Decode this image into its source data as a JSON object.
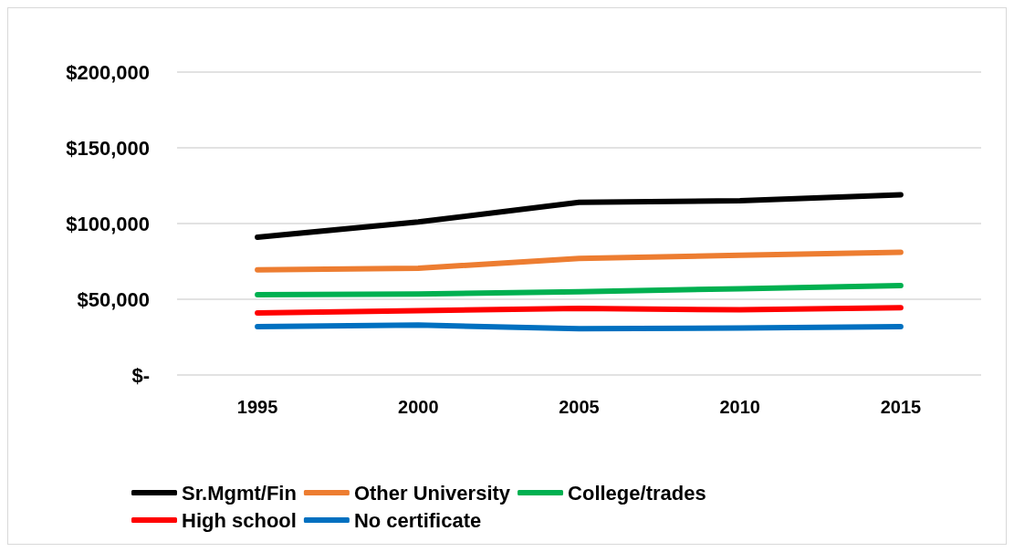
{
  "chart_data": {
    "type": "line",
    "categories": [
      "1995",
      "2000",
      "2005",
      "2010",
      "2015"
    ],
    "series": [
      {
        "name": "Sr.Mgmt/Fin",
        "color": "#000000",
        "values": [
          91000,
          101000,
          114000,
          115000,
          119000
        ]
      },
      {
        "name": "Other University",
        "color": "#ed7d31",
        "values": [
          69500,
          70500,
          77000,
          79000,
          81000
        ]
      },
      {
        "name": "College/trades",
        "color": "#00b050",
        "values": [
          53000,
          53500,
          55000,
          57000,
          59000
        ]
      },
      {
        "name": "High school",
        "color": "#ff0000",
        "values": [
          41000,
          42500,
          44000,
          43000,
          44500
        ]
      },
      {
        "name": "No certificate",
        "color": "#0070c0",
        "values": [
          32000,
          33000,
          30500,
          31000,
          32000
        ]
      }
    ],
    "ylim": [
      0,
      200000
    ],
    "yticks": [
      {
        "value": 0,
        "label": "$-"
      },
      {
        "value": 50000,
        "label": "$50,000"
      },
      {
        "value": 100000,
        "label": "$100,000"
      },
      {
        "value": 150000,
        "label": "$150,000"
      },
      {
        "value": 200000,
        "label": "$200,000"
      }
    ],
    "grid": "y",
    "legend": "bottom",
    "marker": "none",
    "line_style": "solid"
  }
}
